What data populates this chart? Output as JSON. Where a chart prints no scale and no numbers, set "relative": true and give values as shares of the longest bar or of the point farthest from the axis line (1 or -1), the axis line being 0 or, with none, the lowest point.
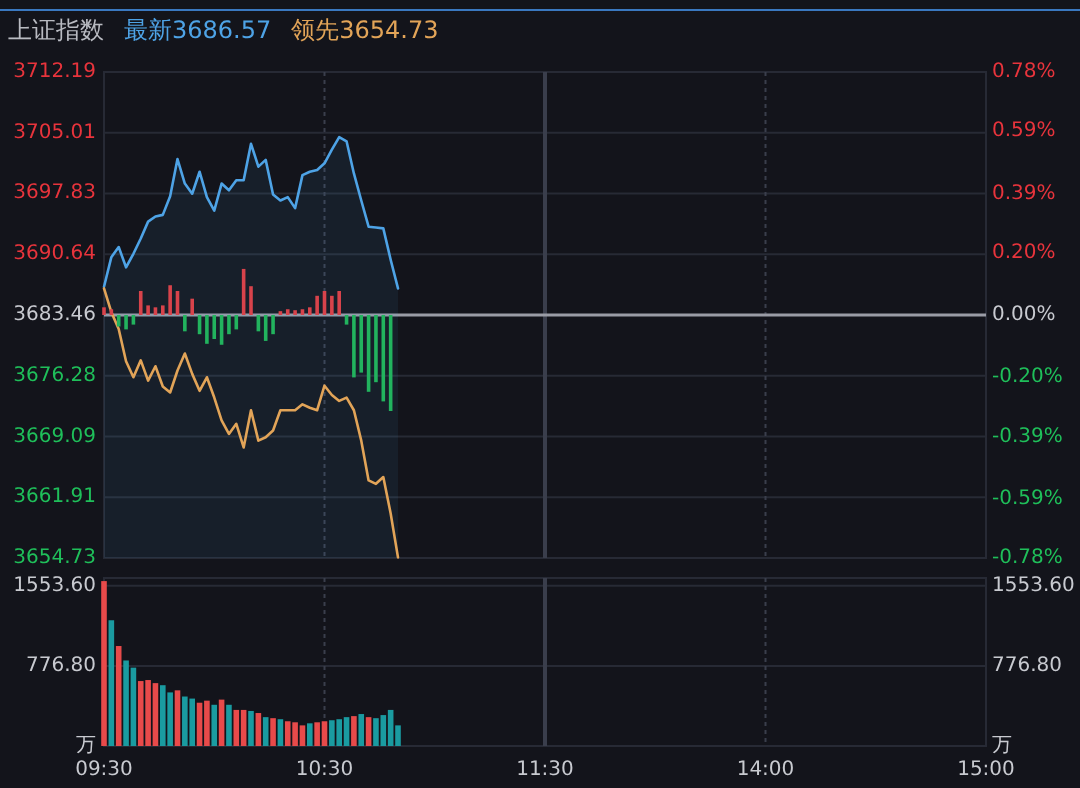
{
  "chart_data": [
    {
      "type": "line",
      "title": "上证指数",
      "legend": "top left",
      "grid": true,
      "tick_labels": "y",
      "categories": [
        null,
        null,
        null,
        null,
        null,
        null,
        null,
        null,
        null,
        null,
        null,
        null,
        null,
        null,
        null,
        null,
        null,
        null,
        null,
        null,
        null,
        null,
        null,
        null,
        null,
        null,
        null,
        null,
        null,
        null,
        null,
        null,
        null,
        null,
        null,
        null,
        null,
        null,
        null,
        null,
        null,
        null,
        null,
        null,
        null,
        null,
        null,
        null,
        null,
        null,
        null,
        null,
        null,
        null,
        null,
        null,
        null,
        null,
        null,
        null,
        null,
        null,
        null,
        null,
        null,
        null,
        null,
        null,
        null,
        null,
        null,
        null,
        null,
        null,
        null,
        null,
        null,
        null,
        null,
        null,
        null,
        null,
        null,
        null,
        null,
        null,
        null,
        null,
        null,
        null,
        null,
        null,
        null,
        null,
        null,
        null,
        null,
        null,
        null,
        null,
        null,
        null,
        null,
        null,
        null,
        null,
        null,
        null,
        null,
        null,
        null,
        null,
        null,
        null,
        null,
        null,
        null,
        null,
        null,
        null,
        null
      ],
      "ylim": [
        3654.73,
        3712.19
      ],
      "yticks": [
        3654.73,
        3661.91,
        3669.09,
        3676.28,
        3683.46,
        3690.64,
        3697.83,
        3705.01,
        3712.19
      ],
      "y2lim": [
        -0.78,
        0.78
      ],
      "y2ticks": [
        {
          "value": -0.78,
          "label": "-0.78%"
        },
        {
          "value": -0.59,
          "label": "-0.59%"
        },
        {
          "value": -0.39,
          "label": "-0.39%"
        },
        {
          "value": -0.2,
          "label": "-0.20%"
        },
        {
          "value": 0,
          "label": "0.00%"
        },
        {
          "value": 0.2,
          "label": "0.20%"
        },
        {
          "value": 0.39,
          "label": "0.39%"
        },
        {
          "value": 0.59,
          "label": "0.59%"
        },
        {
          "value": 0.78,
          "label": "0.78%"
        }
      ],
      "ref_lines": [
        {
          "axis": "y",
          "value": 3683.46,
          "color": "#9a9ca6"
        }
      ],
      "series": [
        {
          "name": "最新3686.57",
          "color": "#4ea3e6",
          "type": "area",
          "values": [
            3686.8,
            3690.3,
            3691.5,
            3689.1,
            3690.7,
            3692.5,
            3694.5,
            3695.1,
            3695.3,
            3697.5,
            3701.9,
            3699.0,
            3697.8,
            3700.4,
            3697.4,
            3695.8,
            3699.0,
            3698.2,
            3699.4,
            3699.4,
            3703.7,
            3701.0,
            3701.8,
            3697.7,
            3697.0,
            3697.4,
            3696.1,
            3700.0,
            3700.4,
            3700.6,
            3701.4,
            3703.0,
            3704.5,
            3704.0,
            3700.2,
            3697.0,
            3693.9,
            3693.8,
            3693.7,
            3690.0,
            3686.6,
            null,
            null,
            null,
            null,
            null,
            null,
            null,
            null,
            null,
            null,
            null,
            null,
            null,
            null,
            null,
            null,
            null,
            null,
            null,
            null,
            null,
            null,
            null,
            null,
            null,
            null,
            null,
            null,
            null,
            null,
            null,
            null,
            null,
            null,
            null,
            null,
            null,
            null,
            null,
            null,
            null,
            null,
            null,
            null,
            null,
            null,
            null,
            null,
            null,
            null,
            null,
            null,
            null,
            null,
            null,
            null,
            null,
            null,
            null,
            null,
            null,
            null,
            null,
            null,
            null,
            null,
            null,
            null,
            null,
            null,
            null,
            null,
            null,
            null,
            null,
            null,
            null,
            null,
            null,
            null
          ]
        },
        {
          "name": "领先3654.73",
          "color": "#e2a458",
          "values": [
            3686.6,
            3683.8,
            3681.8,
            3678.0,
            3676.1,
            3678.1,
            3675.7,
            3677.4,
            3675.0,
            3674.3,
            3676.9,
            3678.9,
            3676.5,
            3674.5,
            3676.1,
            3673.7,
            3671.0,
            3669.4,
            3670.6,
            3667.8,
            3672.2,
            3668.6,
            3669.0,
            3669.8,
            3672.2,
            3672.2,
            3672.2,
            3672.9,
            3672.5,
            3672.2,
            3675.1,
            3674.0,
            3673.3,
            3673.7,
            3672.2,
            3668.6,
            3663.9,
            3663.5,
            3664.3,
            3660.0,
            3654.8,
            null,
            null,
            null,
            null,
            null,
            null,
            null,
            null,
            null,
            null,
            null,
            null,
            null,
            null,
            null,
            null,
            null,
            null,
            null,
            null,
            null,
            null,
            null,
            null,
            null,
            null,
            null,
            null,
            null,
            null,
            null,
            null,
            null,
            null,
            null,
            null,
            null,
            null,
            null,
            null,
            null,
            null,
            null,
            null,
            null,
            null,
            null,
            null,
            null,
            null,
            null,
            null,
            null,
            null,
            null,
            null,
            null,
            null,
            null,
            null,
            null,
            null,
            null,
            null,
            null,
            null,
            null,
            null,
            null,
            null,
            null,
            null,
            null,
            null,
            null,
            null,
            null,
            null,
            null,
            null
          ]
        }
      ]
    },
    {
      "type": "bar",
      "relative": true,
      "tick_labels": false,
      "categories": [
        null,
        null,
        null,
        null,
        null,
        null,
        null,
        null,
        null,
        null,
        null,
        null,
        null,
        null,
        null,
        null,
        null,
        null,
        null,
        null,
        null,
        null,
        null,
        null,
        null,
        null,
        null,
        null,
        null,
        null,
        null,
        null,
        null,
        null,
        null,
        null,
        null,
        null,
        null,
        null,
        null,
        null,
        null,
        null,
        null,
        null,
        null,
        null,
        null,
        null,
        null,
        null,
        null,
        null,
        null,
        null,
        null,
        null,
        null,
        null,
        null,
        null,
        null,
        null,
        null,
        null,
        null,
        null,
        null,
        null,
        null,
        null,
        null,
        null,
        null,
        null,
        null,
        null,
        null,
        null,
        null,
        null,
        null,
        null,
        null,
        null,
        null,
        null,
        null,
        null,
        null,
        null,
        null,
        null,
        null,
        null,
        null,
        null,
        null,
        null,
        null,
        null,
        null,
        null,
        null,
        null,
        null,
        null,
        null,
        null,
        null,
        null,
        null,
        null,
        null,
        null,
        null,
        null,
        null,
        null,
        null
      ],
      "values": [
        0.08,
        0.06,
        -0.12,
        -0.15,
        -0.1,
        0.25,
        0.1,
        0.08,
        0.1,
        0.31,
        0.25,
        -0.17,
        0.17,
        -0.2,
        -0.3,
        -0.25,
        -0.31,
        -0.2,
        -0.15,
        0.48,
        0.3,
        -0.17,
        -0.27,
        -0.2,
        0.04,
        0.06,
        0.05,
        0.06,
        0.08,
        0.2,
        0.25,
        0.2,
        0.25,
        -0.1,
        -0.65,
        -0.6,
        -0.8,
        -0.7,
        -0.9,
        -1,
        null,
        null,
        null,
        null,
        null,
        null,
        null,
        null,
        null,
        null,
        null,
        null,
        null,
        null,
        null,
        null,
        null,
        null,
        null,
        null,
        null,
        null,
        null,
        null,
        null,
        null,
        null,
        null,
        null,
        null,
        null,
        null,
        null,
        null,
        null,
        null,
        null,
        null,
        null,
        null,
        null,
        null,
        null,
        null,
        null,
        null,
        null,
        null,
        null,
        null,
        null,
        null,
        null,
        null,
        null,
        null,
        null,
        null,
        null,
        null,
        null,
        null,
        null,
        null,
        null,
        null,
        null,
        null,
        null,
        null,
        null,
        null,
        null,
        null,
        null,
        null,
        null,
        null,
        null,
        null,
        null
      ],
      "colors": [
        "#d8434b",
        "#d8434b",
        "#22b35e",
        "#22b35e",
        "#22b35e",
        "#d8434b",
        "#d8434b",
        "#d8434b",
        "#d8434b",
        "#d8434b",
        "#d8434b",
        "#22b35e",
        "#d8434b",
        "#22b35e",
        "#22b35e",
        "#22b35e",
        "#22b35e",
        "#22b35e",
        "#22b35e",
        "#d8434b",
        "#d8434b",
        "#22b35e",
        "#22b35e",
        "#22b35e",
        "#d8434b",
        "#d8434b",
        "#d8434b",
        "#d8434b",
        "#d8434b",
        "#d8434b",
        "#d8434b",
        "#d8434b",
        "#d8434b",
        "#22b35e",
        "#22b35e",
        "#22b35e",
        "#22b35e",
        "#22b35e",
        "#22b35e",
        "#22b35e",
        null,
        null,
        null,
        null,
        null,
        null,
        null,
        null,
        null,
        null,
        null,
        null,
        null,
        null,
        null,
        null,
        null,
        null,
        null,
        null,
        null,
        null,
        null,
        null,
        null,
        null,
        null,
        null,
        null,
        null,
        null,
        null,
        null,
        null,
        null,
        null,
        null,
        null,
        null,
        null,
        null,
        null,
        null,
        null,
        null,
        null,
        null,
        null,
        null,
        null,
        null,
        null,
        null,
        null,
        null,
        null,
        null,
        null,
        null,
        null,
        null,
        null,
        null,
        null,
        null,
        null,
        null,
        null,
        null,
        null,
        null,
        null,
        null,
        null,
        null,
        null,
        null,
        null,
        null,
        null,
        null
      ]
    },
    {
      "type": "bar",
      "grid": true,
      "categories": [
        "09:30",
        null,
        null,
        null,
        null,
        null,
        null,
        null,
        null,
        null,
        null,
        null,
        null,
        null,
        null,
        null,
        null,
        null,
        null,
        null,
        null,
        null,
        null,
        null,
        null,
        null,
        null,
        null,
        null,
        null,
        "10:30",
        null,
        null,
        null,
        null,
        null,
        null,
        null,
        null,
        null,
        null,
        null,
        null,
        null,
        null,
        null,
        null,
        null,
        null,
        null,
        null,
        null,
        null,
        null,
        null,
        null,
        null,
        null,
        null,
        null,
        "11:30",
        null,
        null,
        null,
        null,
        null,
        null,
        null,
        null,
        null,
        null,
        null,
        null,
        null,
        null,
        null,
        null,
        null,
        null,
        null,
        null,
        null,
        null,
        null,
        null,
        null,
        null,
        null,
        null,
        null,
        "14:00",
        null,
        null,
        null,
        null,
        null,
        null,
        null,
        null,
        null,
        null,
        null,
        null,
        null,
        null,
        null,
        null,
        null,
        null,
        null,
        null,
        null,
        null,
        null,
        null,
        null,
        null,
        null,
        null,
        null,
        "15:00"
      ],
      "ylim": [
        0,
        1630
      ],
      "yticks": [
        {
          "value": 0,
          "label": "万"
        },
        {
          "value": 776.8,
          "label": "776.80"
        },
        {
          "value": 1553.6,
          "label": "1553.60"
        }
      ],
      "y2lim": [
        0,
        1630
      ],
      "y2ticks": [
        {
          "value": 0,
          "label": "万"
        },
        {
          "value": 776.8,
          "label": "776.80"
        },
        {
          "value": 1553.6,
          "label": "1553.60"
        }
      ],
      "values": [
        1600,
        1220,
        970,
        830,
        760,
        630,
        640,
        610,
        590,
        520,
        540,
        480,
        460,
        420,
        440,
        400,
        450,
        400,
        350,
        350,
        340,
        320,
        280,
        270,
        260,
        240,
        230,
        200,
        220,
        230,
        240,
        250,
        260,
        280,
        290,
        310,
        280,
        270,
        300,
        350,
        200,
        null,
        null,
        null,
        null,
        null,
        null,
        null,
        null,
        null,
        null,
        null,
        null,
        null,
        null,
        null,
        null,
        null,
        null,
        null,
        null,
        null,
        null,
        null,
        null,
        null,
        null,
        null,
        null,
        null,
        null,
        null,
        null,
        null,
        null,
        null,
        null,
        null,
        null,
        null,
        null,
        null,
        null,
        null,
        null,
        null,
        null,
        null,
        null,
        null,
        null,
        null,
        null,
        null,
        null,
        null,
        null,
        null,
        null,
        null,
        null,
        null,
        null,
        null,
        null,
        null,
        null,
        null,
        null,
        null,
        null,
        null,
        null,
        null,
        null,
        null,
        null,
        null,
        null,
        null,
        null
      ],
      "colors": [
        "#e84a4a",
        "#1a9ba0",
        "#e84a4a",
        "#1a9ba0",
        "#1a9ba0",
        "#e84a4a",
        "#e84a4a",
        "#e84a4a",
        "#1a9ba0",
        "#1a9ba0",
        "#e84a4a",
        "#1a9ba0",
        "#1a9ba0",
        "#e84a4a",
        "#e84a4a",
        "#1a9ba0",
        "#e84a4a",
        "#1a9ba0",
        "#e84a4a",
        "#e84a4a",
        "#1a9ba0",
        "#e84a4a",
        "#1a9ba0",
        "#e84a4a",
        "#1a9ba0",
        "#e84a4a",
        "#e84a4a",
        "#e84a4a",
        "#1a9ba0",
        "#e84a4a",
        "#e84a4a",
        "#1a9ba0",
        "#1a9ba0",
        "#1a9ba0",
        "#e84a4a",
        "#1a9ba0",
        "#e84a4a",
        "#1a9ba0",
        "#1a9ba0",
        "#1a9ba0",
        "#1a9ba0",
        null,
        null,
        null,
        null,
        null,
        null,
        null,
        null,
        null,
        null,
        null,
        null,
        null,
        null,
        null,
        null,
        null,
        null,
        null,
        null,
        null,
        null,
        null,
        null,
        null,
        null,
        null,
        null,
        null,
        null,
        null,
        null,
        null,
        null,
        null,
        null,
        null,
        null,
        null,
        null,
        null,
        null,
        null,
        null,
        null,
        null,
        null,
        null,
        null,
        null,
        null,
        null,
        null,
        null,
        null,
        null,
        null,
        null,
        null,
        null,
        null,
        null,
        null,
        null,
        null,
        null,
        null,
        null,
        null,
        null,
        null,
        null,
        null,
        null,
        null,
        null,
        null,
        null,
        null,
        null
      ]
    }
  ]
}
